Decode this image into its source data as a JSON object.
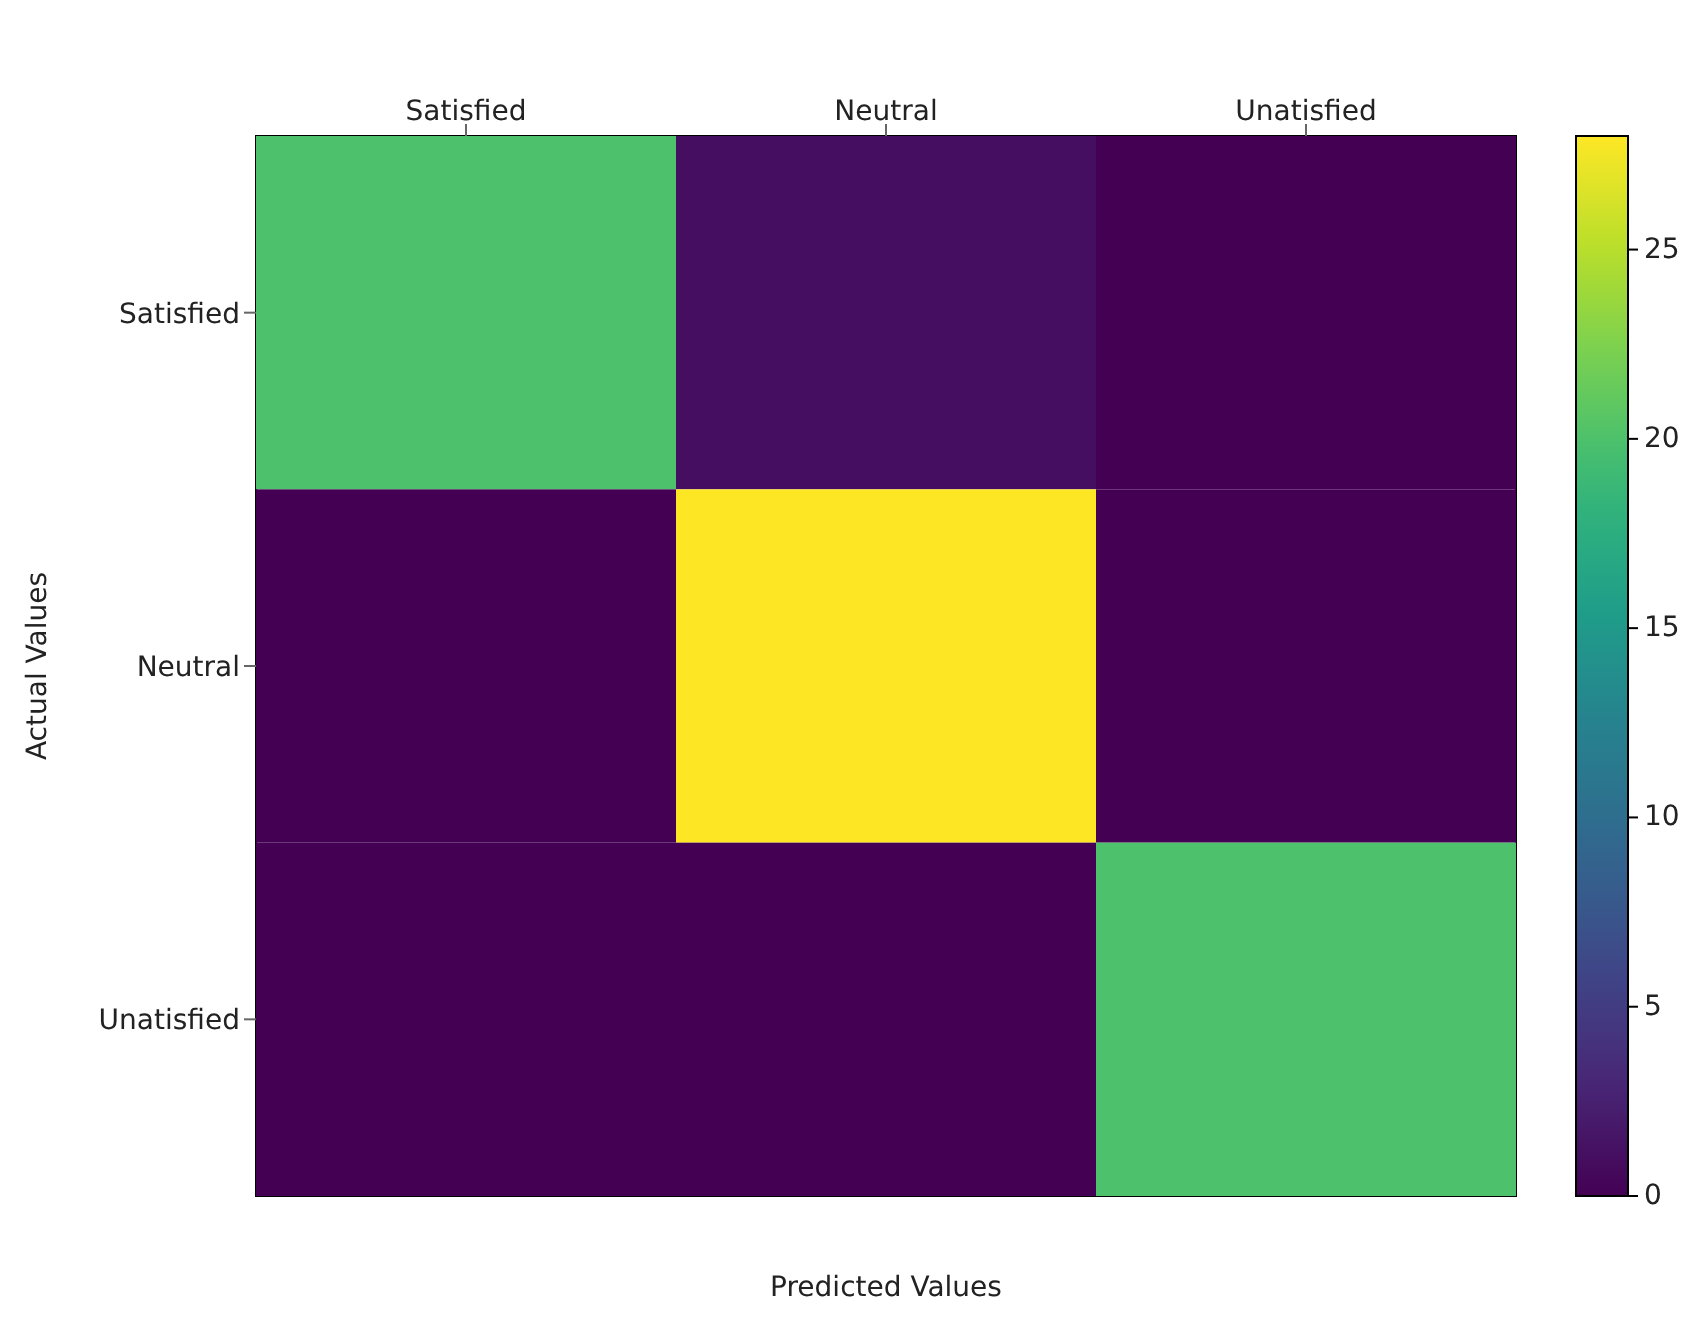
{
  "chart_data": {
    "type": "heatmap",
    "xlabel": "Predicted Values",
    "ylabel": "Actual Values",
    "categories": [
      "Satisfied",
      "Neutral",
      "Unatisfied"
    ],
    "y_categories": [
      "Satisfied",
      "Neutral",
      "Unatisfied"
    ],
    "cells": [
      [
        20,
        1,
        0
      ],
      [
        0,
        28,
        0
      ],
      [
        0,
        0,
        20
      ]
    ],
    "clim": [
      0,
      28
    ],
    "cticks": [
      0,
      5,
      10,
      15,
      20,
      25
    ]
  }
}
